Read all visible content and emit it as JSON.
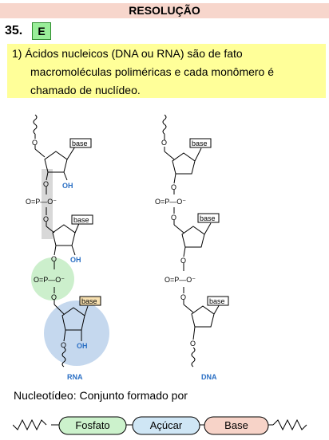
{
  "header": {
    "title": "RESOLUÇÃO"
  },
  "question": {
    "number": "35.",
    "answer": "E"
  },
  "note": {
    "line1": "1) Ácidos nucleicos (DNA ou RNA) são de fato",
    "line2": "macromoléculas poliméricas e cada monômero é",
    "line3": "chamado de nuclídeo."
  },
  "figure": {
    "rna_label": "RNA",
    "dna_label": "DNA",
    "base_label": "base",
    "oh_label": "OH",
    "phosphate_label": "O=P—O⁻",
    "o_label": "O"
  },
  "caption": "Nucleotídeo: Conjunto formado por",
  "schema": {
    "items": [
      "Fosfato",
      "Açúcar",
      "Base"
    ],
    "colors": {
      "fosfato": "#ccf2cc",
      "acucar": "#cfe6f5",
      "base": "#f7d3c8"
    }
  },
  "colors": {
    "header": "#f7d6cc",
    "answer": "#99ee99",
    "note": "#ffff99",
    "label_blue": "#2a6fc4"
  }
}
